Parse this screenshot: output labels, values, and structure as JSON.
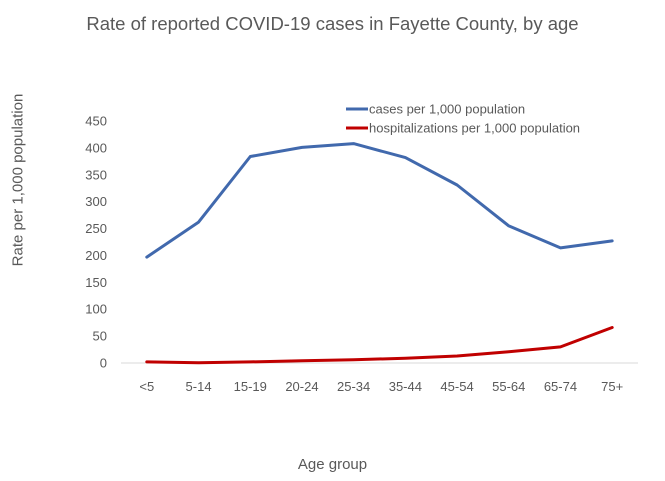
{
  "chart_data": {
    "type": "line",
    "title": "Rate of reported COVID-19 cases in Fayette County, by age",
    "xlabel": "Age group",
    "ylabel": "Rate per 1,000 population",
    "categories": [
      "<5",
      "5-14",
      "15-19",
      "20-24",
      "25-34",
      "35-44",
      "45-54",
      "55-64",
      "65-74",
      "75+"
    ],
    "yticks": [
      "0",
      "50",
      "100",
      "150",
      "200",
      "250",
      "300",
      "350",
      "400",
      "450"
    ],
    "ylim": [
      0,
      450
    ],
    "grid": false,
    "legend_position": "top-right",
    "series": [
      {
        "name": "cases per 1,000 population",
        "color": "#4169ad",
        "values": [
          197,
          262,
          384,
          401,
          408,
          382,
          331,
          255,
          214,
          227
        ]
      },
      {
        "name": "hospitalizations per 1,000 population",
        "color": "#c00000",
        "values": [
          2,
          0.5,
          2,
          4,
          6,
          9,
          13,
          21,
          30,
          66
        ]
      }
    ]
  }
}
